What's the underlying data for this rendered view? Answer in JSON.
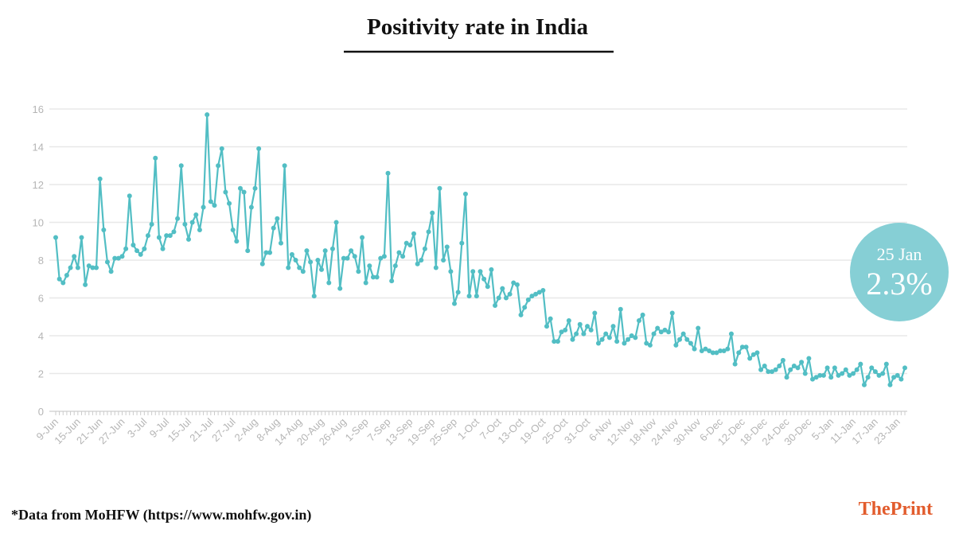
{
  "chart_data": {
    "type": "line",
    "title": "Positivity rate in India",
    "categories": [
      "9-Jun",
      null,
      null,
      null,
      null,
      null,
      "15-Jun",
      null,
      null,
      null,
      null,
      null,
      "21-Jun",
      null,
      null,
      null,
      null,
      null,
      "27-Jun",
      null,
      null,
      null,
      null,
      null,
      "3-Jul",
      null,
      null,
      null,
      null,
      null,
      "9-Jul",
      null,
      null,
      null,
      null,
      null,
      "15-Jul",
      null,
      null,
      null,
      null,
      null,
      "21-Jul",
      null,
      null,
      null,
      null,
      null,
      "27-Jul",
      null,
      null,
      null,
      null,
      null,
      "2-Aug",
      null,
      null,
      null,
      null,
      null,
      "8-Aug",
      null,
      null,
      null,
      null,
      null,
      "14-Aug",
      null,
      null,
      null,
      null,
      null,
      "20-Aug",
      null,
      null,
      null,
      null,
      null,
      "26-Aug",
      null,
      null,
      null,
      null,
      null,
      "1-Sep",
      null,
      null,
      null,
      null,
      null,
      "7-Sep",
      null,
      null,
      null,
      null,
      null,
      "13-Sep",
      null,
      null,
      null,
      null,
      null,
      "19-Sep",
      null,
      null,
      null,
      null,
      null,
      "25-Sep",
      null,
      null,
      null,
      null,
      null,
      "1-Oct",
      null,
      null,
      null,
      null,
      null,
      "7-Oct",
      null,
      null,
      null,
      null,
      null,
      "13-Oct",
      null,
      null,
      null,
      null,
      null,
      "19-Oct",
      null,
      null,
      null,
      null,
      null,
      "25-Oct",
      null,
      null,
      null,
      null,
      null,
      "31-Oct",
      null,
      null,
      null,
      null,
      null,
      "6-Nov",
      null,
      null,
      null,
      null,
      null,
      "12-Nov",
      null,
      null,
      null,
      null,
      null,
      "18-Nov",
      null,
      null,
      null,
      null,
      null,
      "24-Nov",
      null,
      null,
      null,
      null,
      null,
      "30-Nov",
      null,
      null,
      null,
      null,
      null,
      "6-Dec",
      null,
      null,
      null,
      null,
      null,
      "12-Dec",
      null,
      null,
      null,
      null,
      null,
      "18-Dec",
      null,
      null,
      null,
      null,
      null,
      "24-Dec",
      null,
      null,
      null,
      null,
      null,
      "30-Dec",
      null,
      null,
      null,
      null,
      null,
      "5-Jan",
      null,
      null,
      null,
      null,
      null,
      "11-Jan",
      null,
      null,
      null,
      null,
      null,
      "17-Jan",
      null,
      null,
      null,
      null,
      null,
      "23-Jan",
      null,
      null
    ],
    "values": [
      9.2,
      7.0,
      6.8,
      7.2,
      7.6,
      8.2,
      7.6,
      9.2,
      6.7,
      7.7,
      7.6,
      7.6,
      12.3,
      9.6,
      7.9,
      7.4,
      8.1,
      8.1,
      8.2,
      8.6,
      11.4,
      8.8,
      8.5,
      8.3,
      8.6,
      9.3,
      9.9,
      13.4,
      9.2,
      8.6,
      9.3,
      9.3,
      9.5,
      10.2,
      13.0,
      9.9,
      9.1,
      10.0,
      10.4,
      9.6,
      10.8,
      15.7,
      11.1,
      10.9,
      13.0,
      13.9,
      11.6,
      11.0,
      9.6,
      9.0,
      11.8,
      11.6,
      8.5,
      10.8,
      11.8,
      13.9,
      7.8,
      8.4,
      8.4,
      9.7,
      10.2,
      8.9,
      13.0,
      7.6,
      8.3,
      8.0,
      7.6,
      7.4,
      8.5,
      7.9,
      6.1,
      8.0,
      7.5,
      8.5,
      6.8,
      8.6,
      10.0,
      6.5,
      8.1,
      8.1,
      8.5,
      8.2,
      7.4,
      9.2,
      6.8,
      7.7,
      7.1,
      7.1,
      8.1,
      8.2,
      12.6,
      6.9,
      7.7,
      8.4,
      8.2,
      8.9,
      8.8,
      9.4,
      7.8,
      8.0,
      8.6,
      9.5,
      10.5,
      7.6,
      11.8,
      8.0,
      8.7,
      7.4,
      5.7,
      6.3,
      8.9,
      11.5,
      6.1,
      7.4,
      6.1,
      7.4,
      7.0,
      6.6,
      7.5,
      5.6,
      6.0,
      6.5,
      6.0,
      6.2,
      6.8,
      6.7,
      5.1,
      5.5,
      5.9,
      6.1,
      6.2,
      6.3,
      6.4,
      4.5,
      4.9,
      3.7,
      3.7,
      4.2,
      4.3,
      4.8,
      3.8,
      4.1,
      4.6,
      4.1,
      4.5,
      4.3,
      5.2,
      3.6,
      3.8,
      4.1,
      3.9,
      4.5,
      3.7,
      5.4,
      3.6,
      3.8,
      4.0,
      3.9,
      4.8,
      5.1,
      3.6,
      3.5,
      4.1,
      4.4,
      4.2,
      4.3,
      4.2,
      5.2,
      3.5,
      3.8,
      4.1,
      3.8,
      3.6,
      3.3,
      4.4,
      3.2,
      3.3,
      3.2,
      3.1,
      3.1,
      3.2,
      3.2,
      3.3,
      4.1,
      2.5,
      3.1,
      3.4,
      3.4,
      2.8,
      3.0,
      3.1,
      2.2,
      2.4,
      2.1,
      2.1,
      2.2,
      2.4,
      2.7,
      1.8,
      2.2,
      2.4,
      2.3,
      2.6,
      2.0,
      2.8,
      1.7,
      1.8,
      1.9,
      1.9,
      2.3,
      1.8,
      2.3,
      1.9,
      2.0,
      2.2,
      1.9,
      2.0,
      2.2,
      2.5,
      1.4,
      1.8,
      2.3,
      2.1,
      1.9,
      2.0,
      2.5,
      1.4,
      1.8,
      1.9,
      1.7,
      2.3
    ],
    "color": "#52bec4",
    "ylim": [
      0,
      16
    ],
    "yticks": [
      0,
      2,
      4,
      6,
      8,
      10,
      12,
      14,
      16
    ],
    "grid": true,
    "annotation": {
      "date": "25 Jan",
      "label": "2.3%"
    },
    "note": "*Data from MoHFW (https://www.mohfw.gov.in)",
    "brand": "ThePrint"
  }
}
